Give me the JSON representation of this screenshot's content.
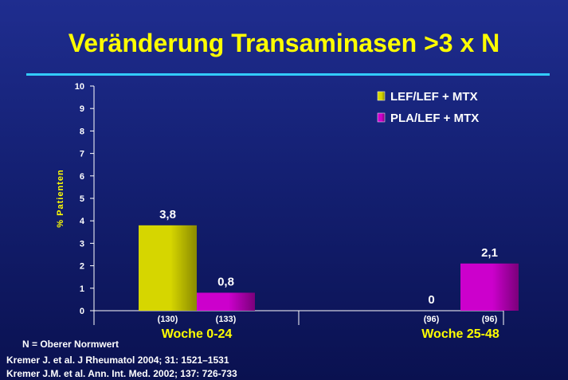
{
  "title": "Veränderung Transaminasen >3 x N",
  "footnote": "N = Oberer Normwert",
  "references": [
    "Kremer J. et al. J Rheumatol 2004; 31: 1521–1531",
    "Kremer J.M. et al. Ann. Int. Med. 2002; 137: 726-733"
  ],
  "colors": {
    "title": "#ffff00",
    "rule": "#33ccff",
    "series_0": "#d6d600",
    "series_1": "#cc00cc",
    "group_label": "#ffff00",
    "ylabel": "#ffff00"
  },
  "chart_data": {
    "type": "bar",
    "categories": [
      "Woche 0-24",
      "Woche 25-48"
    ],
    "series": [
      {
        "name": "LEF/LEF + MTX",
        "values": [
          3.8,
          0
        ],
        "value_labels": [
          "3,8",
          "0"
        ],
        "n_labels": [
          "(130)",
          "(96)"
        ]
      },
      {
        "name": "PLA/LEF + MTX",
        "values": [
          0.8,
          2.1
        ],
        "value_labels": [
          "0,8",
          "2,1"
        ],
        "n_labels": [
          "(133)",
          "(96)"
        ]
      }
    ],
    "ylabel": "% Patienten",
    "xlabel": "",
    "ylim": [
      0,
      10
    ],
    "yticks": [
      0,
      1,
      2,
      3,
      4,
      5,
      6,
      7,
      8,
      9,
      10
    ],
    "legend": "top-right",
    "grid": false
  }
}
